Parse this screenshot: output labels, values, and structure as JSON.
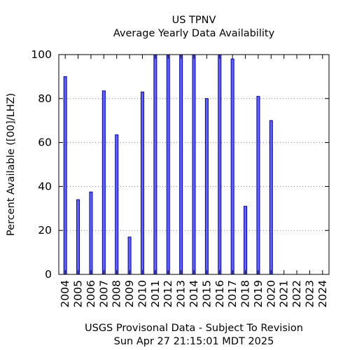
{
  "chart_data": {
    "type": "bar",
    "title": "US TPNV",
    "subtitle": "Average Yearly Data Availability",
    "ylabel": "Percent Available ([00]/LHZ)",
    "xlabel": "",
    "ylim": [
      0,
      100
    ],
    "yticks": [
      0,
      20,
      40,
      60,
      80,
      100
    ],
    "grid": true,
    "categories": [
      "2004",
      "2005",
      "2006",
      "2007",
      "2008",
      "2009",
      "2010",
      "2011",
      "2012",
      "2013",
      "2014",
      "2015",
      "2016",
      "2017",
      "2018",
      "2019",
      "2020",
      "2021",
      "2022",
      "2023",
      "2024"
    ],
    "values": [
      90,
      34,
      37.5,
      83.5,
      63.5,
      17,
      83,
      100,
      100,
      100,
      100,
      80,
      100,
      98,
      31,
      81,
      70,
      0,
      0,
      0,
      0
    ],
    "colors": {
      "bar_fill": "#6262ff",
      "bar_stroke": "#0000b0"
    }
  },
  "footer": {
    "line1": "USGS Provisonal Data - Subject To Revision",
    "line2": "Sun Apr 27 21:15:01 MDT 2025"
  }
}
